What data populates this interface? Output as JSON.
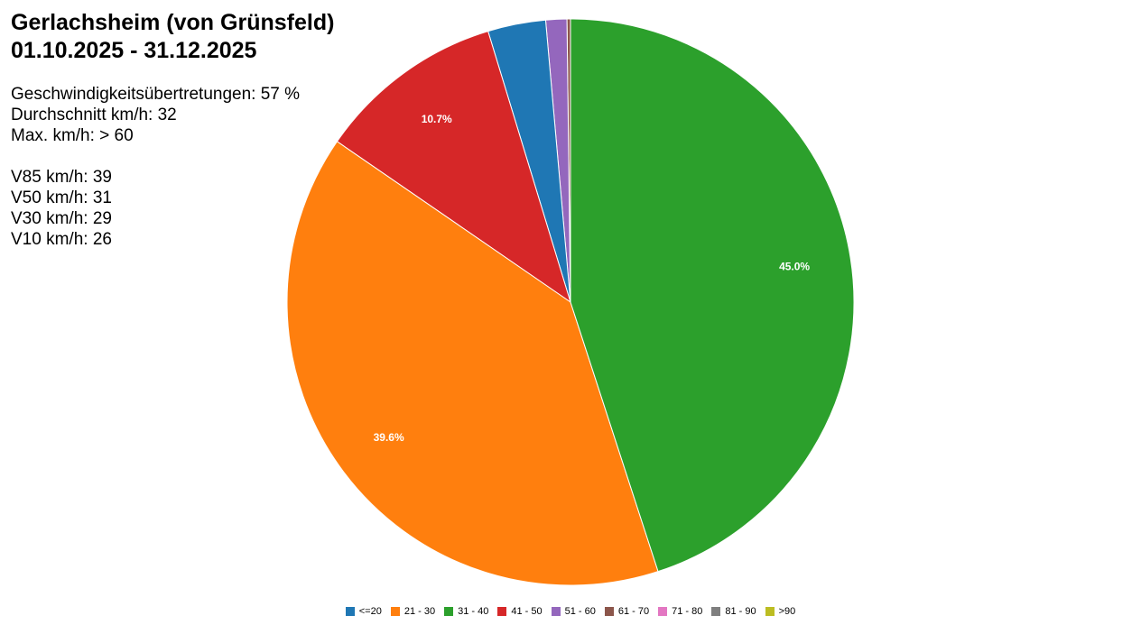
{
  "header": {
    "title_line1": "Gerlachsheim (von Grünsfeld)",
    "title_line2": "01.10.2025 - 31.12.2025"
  },
  "stats": {
    "speeding": "Geschwindigkeitsübertretungen: 57 %",
    "average": "Durchschnitt km/h: 32",
    "max": "Max. km/h: > 60",
    "v85": "V85 km/h: 39",
    "v50": "V50 km/h: 31",
    "v30": "V30 km/h: 29",
    "v10": "V10 km/h: 26"
  },
  "chart_data": {
    "type": "pie",
    "categories": [
      "<=20",
      "21 - 30",
      "31 - 40",
      "41 - 50",
      "51 - 60",
      "61 - 70",
      "71 - 80",
      "81 - 90",
      ">90"
    ],
    "values": [
      3.3,
      39.6,
      45.0,
      10.7,
      1.2,
      0.2,
      0.0,
      0.0,
      0.0
    ],
    "data_labels": [
      "",
      "39.6%",
      "45.0%",
      "10.7%",
      "",
      "",
      "",
      "",
      ""
    ],
    "colors": [
      "#1f77b4",
      "#ff7f0e",
      "#2ca02c",
      "#d62728",
      "#9467bd",
      "#8c564b",
      "#e377c2",
      "#7f7f7f",
      "#bcbd22"
    ],
    "start": "12 o'clock",
    "direction": "counter-clockwise",
    "legend_position": "bottom"
  }
}
